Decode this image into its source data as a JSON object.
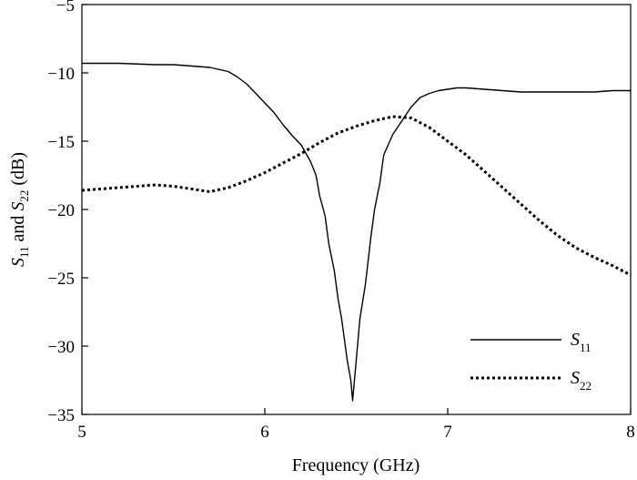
{
  "chart_data": {
    "type": "line",
    "xlabel": "Frequency (GHz)",
    "ylabel": "S11 and S22 (dB)",
    "ylabel_parts": {
      "s": "S",
      "s11_sub": "11",
      "and": " and ",
      "s22_sub": "22",
      "unit": " (dB)"
    },
    "xlim": [
      5,
      8
    ],
    "ylim": [
      -35,
      -5
    ],
    "x_ticks": [
      5,
      6,
      7,
      8
    ],
    "y_ticks": [
      -35,
      -30,
      -25,
      -20,
      -15,
      -10,
      -5
    ],
    "x_tick_labels": [
      "5",
      "6",
      "7",
      "8"
    ],
    "y_tick_labels": [
      "−35",
      "−30",
      "−25",
      "−20",
      "−15",
      "−10",
      "−5"
    ],
    "grid": false,
    "legend_placement": "bottom-right",
    "series": [
      {
        "name": "S11",
        "name_main": "S",
        "name_sub": "11",
        "style": "solid",
        "x": [
          5.0,
          5.2,
          5.4,
          5.5,
          5.6,
          5.7,
          5.8,
          5.85,
          5.9,
          5.95,
          6.0,
          6.05,
          6.1,
          6.15,
          6.2,
          6.25,
          6.28,
          6.3,
          6.33,
          6.35,
          6.38,
          6.4,
          6.42,
          6.45,
          6.47,
          6.48,
          6.49,
          6.5,
          6.52,
          6.55,
          6.58,
          6.6,
          6.63,
          6.65,
          6.7,
          6.75,
          6.8,
          6.85,
          6.9,
          6.95,
          7.0,
          7.05,
          7.1,
          7.2,
          7.3,
          7.4,
          7.5,
          7.6,
          7.7,
          7.8,
          7.9,
          8.0
        ],
        "y": [
          -9.3,
          -9.3,
          -9.4,
          -9.4,
          -9.5,
          -9.6,
          -9.9,
          -10.3,
          -10.8,
          -11.5,
          -12.2,
          -12.9,
          -13.8,
          -14.6,
          -15.3,
          -16.5,
          -17.5,
          -19.0,
          -20.5,
          -22.5,
          -24.5,
          -26.5,
          -28.0,
          -31.0,
          -32.5,
          -34.0,
          -32.5,
          -31.0,
          -28.0,
          -25.5,
          -22.0,
          -20.0,
          -18.0,
          -16.0,
          -14.5,
          -13.5,
          -12.5,
          -11.8,
          -11.5,
          -11.3,
          -11.2,
          -11.1,
          -11.1,
          -11.2,
          -11.3,
          -11.4,
          -11.4,
          -11.4,
          -11.4,
          -11.4,
          -11.3,
          -11.3
        ]
      },
      {
        "name": "S22",
        "name_main": "S",
        "name_sub": "22",
        "style": "dotted",
        "x": [
          5.0,
          5.2,
          5.4,
          5.5,
          5.6,
          5.7,
          5.8,
          5.9,
          6.0,
          6.1,
          6.2,
          6.3,
          6.4,
          6.5,
          6.6,
          6.7,
          6.8,
          6.9,
          7.0,
          7.1,
          7.2,
          7.3,
          7.4,
          7.5,
          7.6,
          7.7,
          7.8,
          7.9,
          8.0
        ],
        "y": [
          -18.6,
          -18.4,
          -18.2,
          -18.3,
          -18.5,
          -18.7,
          -18.4,
          -17.9,
          -17.3,
          -16.6,
          -15.9,
          -15.1,
          -14.4,
          -13.9,
          -13.5,
          -13.2,
          -13.3,
          -14.0,
          -15.0,
          -16.0,
          -17.2,
          -18.4,
          -19.6,
          -20.8,
          -21.9,
          -22.8,
          -23.5,
          -24.1,
          -24.8
        ]
      }
    ]
  }
}
